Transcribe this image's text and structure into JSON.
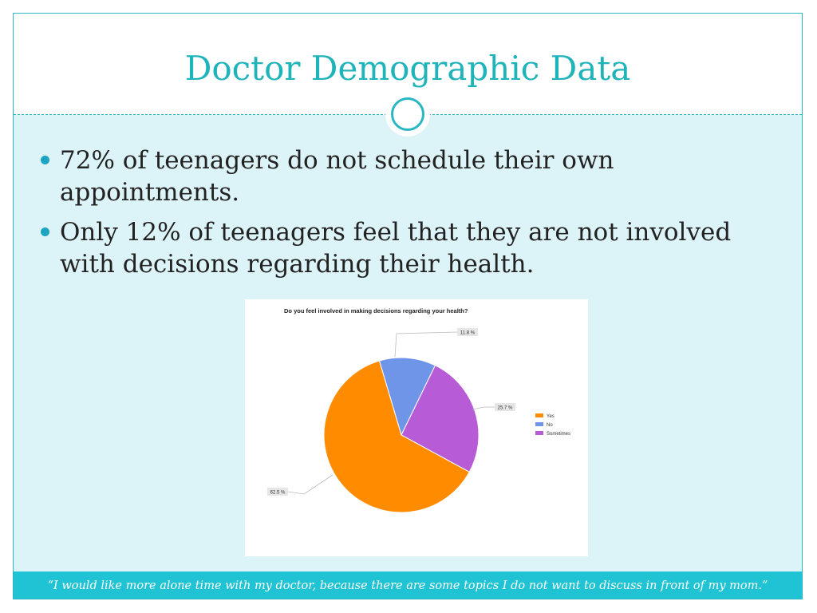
{
  "slide": {
    "title": "Doctor Demographic Data",
    "bullets": [
      "72% of teenagers do not schedule their own appointments.",
      "Only 12% of teenagers feel that they are not involved with decisions regarding their health."
    ],
    "footer_quote": "“I would like more alone time with my doctor, because there are some topics I do not want to discuss in front of my mom.”",
    "colors": {
      "accent": "#1fb3ba",
      "content_background": "#dcf4f8",
      "footer_background": "#1fc3d4",
      "bullet": "#1fa3c2"
    }
  },
  "chart_data": {
    "type": "pie",
    "title": "Do you feel involved in making decisions regarding your health?",
    "legend_position": "right",
    "slices": [
      {
        "label": "Yes",
        "value": 62.5,
        "display": "62.5 %",
        "color": "#ff8c00"
      },
      {
        "label": "No",
        "value": 11.8,
        "display": "11.8 %",
        "color": "#6f95e8"
      },
      {
        "label": "Sometimes",
        "value": 25.7,
        "display": "25.7 %",
        "color": "#b75bd6"
      }
    ]
  }
}
